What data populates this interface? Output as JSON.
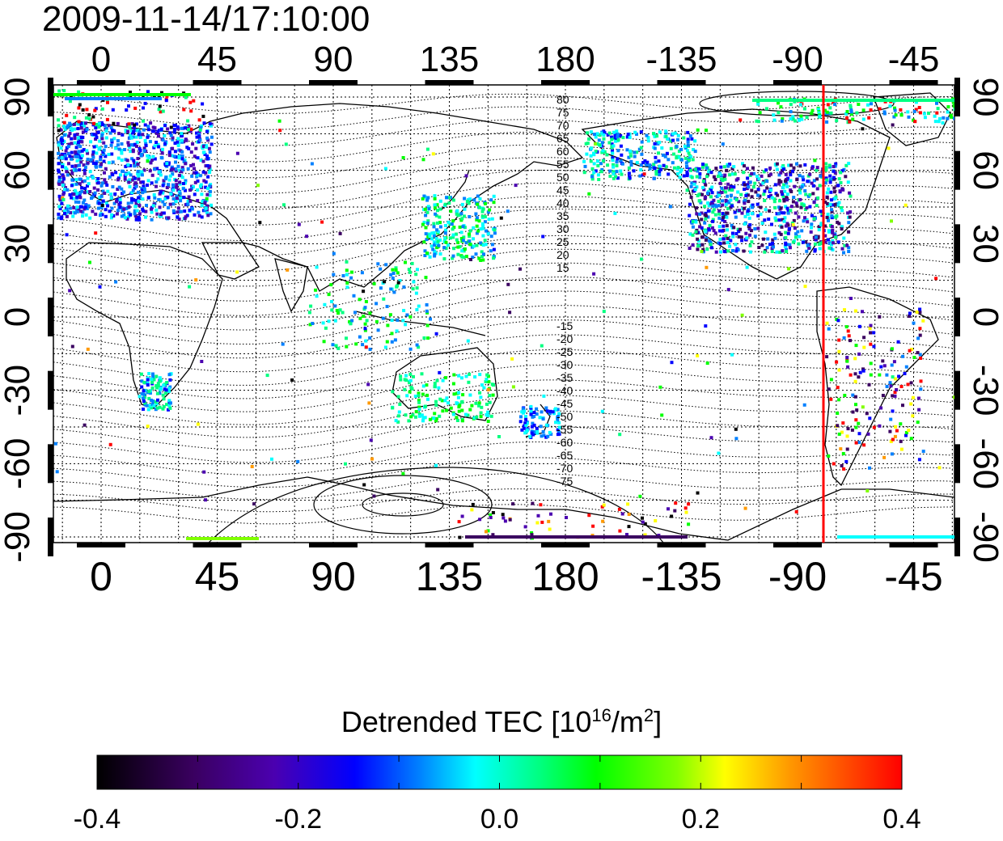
{
  "title": "2009-11-14/17:10:00",
  "map": {
    "lon_ticks": [
      "0",
      "45",
      "90",
      "135",
      "180",
      "-135",
      "-90",
      "-45"
    ],
    "lat_ticks": [
      "90",
      "60",
      "30",
      "0",
      "-30",
      "-60",
      "-90"
    ],
    "contour_labels_north": [
      "80",
      "75",
      "70",
      "65",
      "60",
      "55",
      "50",
      "45",
      "40",
      "35",
      "30",
      "25",
      "20",
      "15"
    ],
    "contour_labels_south": [
      "-15",
      "-20",
      "-25",
      "-30",
      "-35",
      "-40",
      "-45",
      "-50",
      "-55",
      "-60",
      "-65",
      "-70",
      "-75"
    ],
    "marker_line_lon": -77,
    "marker_color": "#ff0000"
  },
  "colorbar": {
    "title_prefix": "Detrended TEC  [10",
    "title_exp1": "16",
    "title_mid": "/m",
    "title_exp2": "2",
    "title_suffix": "]",
    "min": -0.4,
    "max": 0.4,
    "tick_labels": [
      "-0.4",
      "-0.2",
      "0.0",
      "0.2",
      "0.4"
    ]
  }
}
